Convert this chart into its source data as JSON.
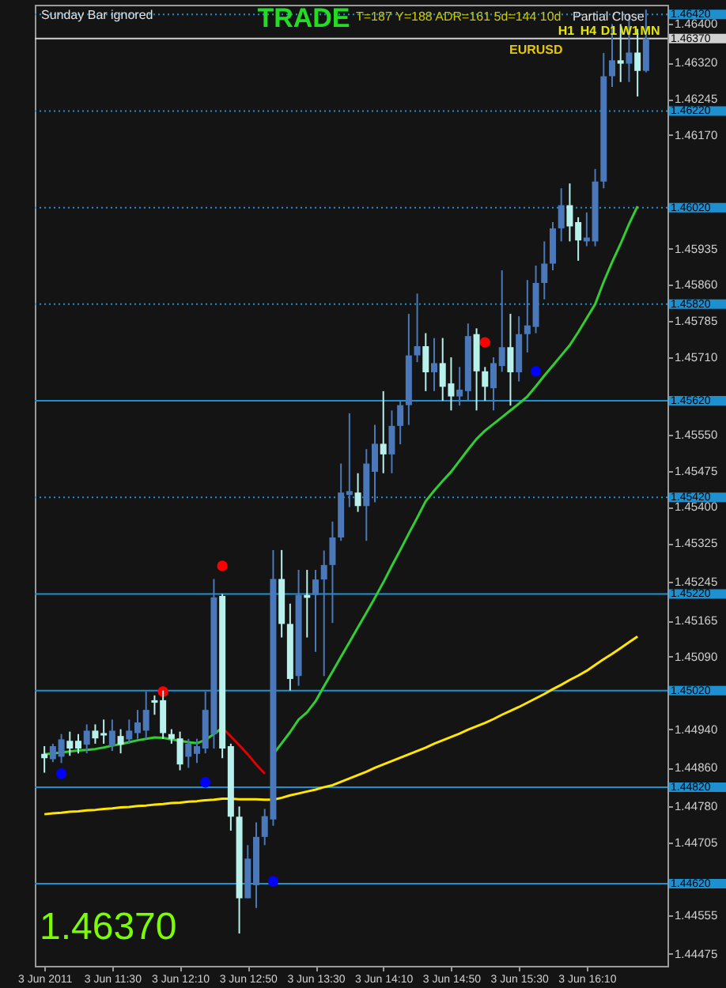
{
  "chart_data": {
    "type": "candlestick",
    "annotations": [
      "Sunday Bar ignored",
      "TRADE",
      "T=187 Y=188 ADR=161 5d=144 10d",
      "Partial Close",
      "H1",
      "H4",
      "D1",
      "W1",
      "MN",
      "EURUSD",
      "1.46370"
    ],
    "categories": [
      "3 Jun 2011",
      null,
      null,
      null,
      null,
      null,
      null,
      null,
      "3 Jun 11:30",
      null,
      null,
      null,
      null,
      null,
      null,
      null,
      "3 Jun 12:10",
      null,
      null,
      null,
      null,
      null,
      null,
      null,
      "3 Jun 12:50",
      null,
      null,
      null,
      null,
      null,
      null,
      null,
      "3 Jun 13:30",
      null,
      null,
      null,
      null,
      null,
      null,
      null,
      "3 Jun 14:10",
      null,
      null,
      null,
      null,
      null,
      null,
      null,
      "3 Jun 14:50",
      null,
      null,
      null,
      null,
      null,
      null,
      null,
      "3 Jun 15:30",
      null,
      null,
      null,
      null,
      null,
      null,
      null,
      "3 Jun 16:10",
      null,
      null,
      null,
      null,
      null,
      null,
      null
    ],
    "ohlc": [
      [
        1.44889,
        1.44905,
        1.4485,
        1.4488
      ],
      [
        1.44878,
        1.4491,
        1.44872,
        1.44905
      ],
      [
        1.44883,
        1.4493,
        1.4487,
        1.44919
      ],
      [
        1.44916,
        1.44935,
        1.44885,
        1.449
      ],
      [
        1.44916,
        1.4493,
        1.4489,
        1.449
      ],
      [
        1.44908,
        1.4495,
        1.4489,
        1.44937
      ],
      [
        1.44937,
        1.4495,
        1.4491,
        1.44921
      ],
      [
        1.44932,
        1.4496,
        1.4491,
        1.44927
      ],
      [
        1.44905,
        1.4496,
        1.44895,
        1.44937
      ],
      [
        1.44926,
        1.4494,
        1.4489,
        1.44908
      ],
      [
        1.44919,
        1.4496,
        1.4491,
        1.44937
      ],
      [
        1.44932,
        1.4498,
        1.4492,
        1.44954
      ],
      [
        1.44937,
        1.45018,
        1.4492,
        1.4498
      ],
      [
        1.45,
        1.4501,
        1.4497,
        1.44995
      ],
      [
        1.45,
        1.4502,
        1.4492,
        1.44932
      ],
      [
        1.4493,
        1.4494,
        1.4491,
        1.4492
      ],
      [
        1.44921,
        1.44935,
        1.44855,
        1.44867
      ],
      [
        1.44883,
        1.4492,
        1.4486,
        1.4491
      ],
      [
        1.44889,
        1.4492,
        1.4487,
        1.44905
      ],
      [
        1.449,
        1.45018,
        1.4489,
        1.4498
      ],
      [
        1.4493,
        1.45251,
        1.449,
        1.45213
      ],
      [
        1.45216,
        1.4522,
        1.4488,
        1.449
      ],
      [
        1.44905,
        1.4491,
        1.4473,
        1.44759
      ],
      [
        1.44759,
        1.4478,
        1.44517,
        1.4459
      ],
      [
        1.4459,
        1.447,
        1.4459,
        1.44672
      ],
      [
        1.44617,
        1.44747,
        1.4457,
        1.44717
      ],
      [
        1.44717,
        1.44775,
        1.447,
        1.4476
      ],
      [
        1.44753,
        1.45311,
        1.4474,
        1.45251
      ],
      [
        1.45251,
        1.45311,
        1.4513,
        1.45158
      ],
      [
        1.45158,
        1.452,
        1.4502,
        1.45044
      ],
      [
        1.4505,
        1.4527,
        1.4503,
        1.45218
      ],
      [
        1.45218,
        1.4527,
        1.4513,
        1.45212
      ],
      [
        1.45218,
        1.4527,
        1.451,
        1.4525
      ],
      [
        1.4525,
        1.4531,
        1.4505,
        1.4528
      ],
      [
        1.4528,
        1.4537,
        1.4516,
        1.45337
      ],
      [
        1.45337,
        1.4549,
        1.4533,
        1.4543
      ],
      [
        1.45425,
        1.45594,
        1.454,
        1.45433
      ],
      [
        1.4543,
        1.4547,
        1.4539,
        1.45402
      ],
      [
        1.45402,
        1.4552,
        1.4533,
        1.4549
      ],
      [
        1.45473,
        1.4557,
        1.4541,
        1.45531
      ],
      [
        1.45531,
        1.4564,
        1.4547,
        1.45509
      ],
      [
        1.45509,
        1.456,
        1.4547,
        1.45568
      ],
      [
        1.45568,
        1.4562,
        1.4553,
        1.45611
      ],
      [
        1.45611,
        1.458,
        1.4557,
        1.45714
      ],
      [
        1.45714,
        1.45842,
        1.457,
        1.45733
      ],
      [
        1.45733,
        1.4576,
        1.4564,
        1.45679
      ],
      [
        1.45679,
        1.4575,
        1.4564,
        1.45698
      ],
      [
        1.45698,
        1.4575,
        1.4562,
        1.45649
      ],
      [
        1.45656,
        1.4571,
        1.456,
        1.45629
      ],
      [
        1.45629,
        1.4569,
        1.4561,
        1.45643
      ],
      [
        1.4564,
        1.4578,
        1.4562,
        1.45754
      ],
      [
        1.45758,
        1.4577,
        1.456,
        1.45681
      ],
      [
        1.45681,
        1.4569,
        1.4562,
        1.45649
      ],
      [
        1.45646,
        1.4571,
        1.456,
        1.45698
      ],
      [
        1.45692,
        1.4589,
        1.4568,
        1.45731
      ],
      [
        1.45731,
        1.458,
        1.4561,
        1.45679
      ],
      [
        1.45679,
        1.45795,
        1.4566,
        1.45758
      ],
      [
        1.45758,
        1.4587,
        1.4572,
        1.45776
      ],
      [
        1.45773,
        1.459,
        1.4576,
        1.45864
      ],
      [
        1.45864,
        1.4595,
        1.4583,
        1.45904
      ],
      [
        1.45904,
        1.4599,
        1.4589,
        1.45977
      ],
      [
        1.45977,
        1.4606,
        1.4595,
        1.46025
      ],
      [
        1.46025,
        1.4607,
        1.4595,
        1.45981
      ],
      [
        1.4599,
        1.46,
        1.4591,
        1.45952
      ],
      [
        1.4595,
        1.4601,
        1.4594,
        1.45958
      ],
      [
        1.4595,
        1.461,
        1.4594,
        1.46074
      ],
      [
        1.46074,
        1.4634,
        1.4606,
        1.46292
      ],
      [
        1.46292,
        1.464,
        1.4627,
        1.46325
      ],
      [
        1.46325,
        1.464,
        1.4628,
        1.46318
      ],
      [
        1.46318,
        1.4642,
        1.4628,
        1.46341
      ],
      [
        1.46341,
        1.4639,
        1.4625,
        1.46303
      ],
      [
        1.46303,
        1.4643,
        1.463,
        1.4637
      ]
    ],
    "colors": [
      "#b8f0ec",
      "#4a78b8",
      "#4a78b8",
      "#b8f0ec",
      "#b8f0ec",
      "#4a78b8",
      "#b8f0ec",
      "#b8f0ec",
      "#4a78b8",
      "#b8f0ec",
      "#4a78b8",
      "#4a78b8",
      "#4a78b8",
      "#b8f0ec",
      "#b8f0ec",
      "#b8f0ec",
      "#b8f0ec",
      "#4a78b8",
      "#4a78b8",
      "#4a78b8",
      "#4a78b8",
      "#b8f0ec",
      "#b8f0ec",
      "#b8f0ec",
      "#4a78b8",
      "#4a78b8",
      "#4a78b8",
      "#4a78b8",
      "#b8f0ec",
      "#b8f0ec",
      "#4a78b8",
      "#b8f0ec",
      "#4a78b8",
      "#4a78b8",
      "#4a78b8",
      "#4a78b8",
      "#4a78b8",
      "#b8f0ec",
      "#4a78b8",
      "#4a78b8",
      "#b8f0ec",
      "#4a78b8",
      "#4a78b8",
      "#4a78b8",
      "#4a78b8",
      "#b8f0ec",
      "#4a78b8",
      "#b8f0ec",
      "#b8f0ec",
      "#4a78b8",
      "#4a78b8",
      "#b8f0ec",
      "#b8f0ec",
      "#4a78b8",
      "#4a78b8",
      "#b8f0ec",
      "#4a78b8",
      "#4a78b8",
      "#4a78b8",
      "#4a78b8",
      "#4a78b8",
      "#4a78b8",
      "#b8f0ec",
      "#b8f0ec",
      "#4a78b8",
      "#4a78b8",
      "#4a78b8",
      "#4a78b8",
      "#b8f0ec",
      "#4a78b8",
      "#b8f0ec",
      "#4a78b8"
    ],
    "series": [
      {
        "type": "line",
        "color": "#32cd32",
        "values": [
          1.44888,
          1.4489,
          1.44892,
          1.44894,
          1.44896,
          1.44897,
          1.44899,
          1.44902,
          1.44906,
          1.44909,
          1.44913,
          1.44917,
          1.4492,
          1.44923,
          1.44922,
          1.44919,
          1.44916,
          1.44913,
          1.44911,
          1.44918,
          1.4493,
          1.44943,
          null,
          null,
          null,
          null,
          null,
          null,
          null,
          null,
          null,
          null,
          null,
          null,
          null,
          null,
          null,
          null,
          null,
          null,
          null,
          null,
          null,
          null,
          null,
          null,
          null,
          null,
          null,
          null,
          null,
          null,
          null,
          null,
          null,
          null,
          null,
          null,
          null,
          null,
          null,
          null,
          null,
          null,
          null,
          null,
          null,
          null,
          null,
          null,
          null,
          null
        ]
      },
      {
        "type": "line",
        "color": "#e00000",
        "values": [
          null,
          null,
          null,
          null,
          null,
          null,
          null,
          null,
          null,
          null,
          null,
          null,
          null,
          null,
          null,
          null,
          null,
          null,
          null,
          null,
          null,
          1.44943,
          1.44925,
          1.44907,
          1.44888,
          1.44867,
          1.44848,
          null,
          null,
          null,
          null,
          null,
          null,
          null,
          null,
          null,
          null,
          null,
          null,
          null,
          null,
          null,
          null,
          null,
          null,
          null,
          null,
          null,
          null,
          null,
          null,
          null,
          null,
          null,
          null,
          null,
          null,
          null,
          null,
          null,
          null,
          null,
          null,
          null,
          null,
          null,
          null,
          null,
          null,
          null,
          null,
          null
        ]
      },
      {
        "type": "line",
        "color": "#32cd32",
        "values": [
          null,
          null,
          null,
          null,
          null,
          null,
          null,
          null,
          null,
          null,
          null,
          null,
          null,
          null,
          null,
          null,
          null,
          null,
          null,
          null,
          null,
          null,
          null,
          null,
          null,
          null,
          null,
          1.44888,
          1.44911,
          1.44934,
          1.4496,
          1.44975,
          1.44998,
          1.45029,
          1.45059,
          1.4509,
          1.4512,
          1.45151,
          1.45181,
          1.45212,
          1.45244,
          1.45278,
          1.45311,
          1.45345,
          1.45378,
          1.45412,
          1.45434,
          1.45454,
          1.45473,
          1.45496,
          1.45519,
          1.45541,
          1.45558,
          1.45572,
          1.45586,
          1.456,
          1.45614,
          1.45629,
          1.4565,
          1.45672,
          1.45693,
          1.45714,
          1.45735,
          1.45762,
          1.45791,
          1.4582,
          1.45866,
          1.45907,
          1.45945,
          1.45986,
          1.46023,
          null
        ]
      },
      {
        "type": "line",
        "color": "#ffe600",
        "values": [
          1.44764,
          1.44766,
          1.44767,
          1.44769,
          1.4477,
          1.44772,
          1.44773,
          1.44775,
          1.44776,
          1.44778,
          1.44779,
          1.44781,
          1.44782,
          1.44784,
          1.44785,
          1.44787,
          1.44788,
          1.4479,
          1.44791,
          1.44793,
          1.44794,
          1.44796,
          1.44796,
          1.44795,
          1.44795,
          1.44795,
          1.44794,
          1.44794,
          1.44798,
          1.44803,
          1.44807,
          1.44811,
          1.44815,
          1.4482,
          1.44824,
          1.44831,
          1.44838,
          1.44845,
          1.44852,
          1.4486,
          1.44867,
          1.44874,
          1.44881,
          1.44888,
          1.44895,
          1.44902,
          1.4491,
          1.44917,
          1.44924,
          1.44931,
          1.44939,
          1.44946,
          1.44953,
          1.44961,
          1.4497,
          1.44978,
          1.44986,
          1.44995,
          1.45004,
          1.45013,
          1.45023,
          1.45032,
          1.45042,
          1.45051,
          1.45061,
          1.45073,
          1.45085,
          1.45096,
          1.45108,
          1.4512,
          1.45132,
          null
        ]
      },
      {
        "type": "scatter",
        "color": "#ff0000",
        "values": [
          null,
          null,
          null,
          null,
          null,
          null,
          null,
          null,
          null,
          null,
          null,
          null,
          null,
          null,
          1.45018,
          null,
          null,
          null,
          null,
          null,
          null,
          1.45278,
          null,
          null,
          null,
          null,
          null,
          null,
          null,
          null,
          null,
          null,
          null,
          null,
          null,
          null,
          null,
          null,
          null,
          null,
          null,
          null,
          null,
          null,
          null,
          null,
          null,
          null,
          null,
          null,
          null,
          null,
          1.45741,
          null,
          null,
          null,
          null,
          null,
          null,
          null,
          null,
          null,
          null,
          null,
          null,
          null,
          null,
          null,
          null,
          null,
          null,
          null
        ]
      },
      {
        "type": "scatter",
        "color": "#0000ff",
        "values": [
          null,
          null,
          1.44848,
          null,
          null,
          null,
          null,
          null,
          null,
          null,
          null,
          null,
          null,
          null,
          null,
          null,
          null,
          null,
          null,
          1.4483,
          null,
          null,
          null,
          null,
          null,
          null,
          null,
          1.44625,
          null,
          null,
          null,
          null,
          null,
          null,
          null,
          null,
          null,
          null,
          null,
          null,
          null,
          null,
          null,
          null,
          null,
          null,
          null,
          null,
          null,
          null,
          null,
          null,
          null,
          null,
          null,
          null,
          null,
          null,
          1.45681,
          null,
          null,
          null,
          null,
          null,
          null,
          null,
          null,
          null,
          null,
          null,
          null,
          null
        ]
      }
    ],
    "ref_lines": [
      {
        "axis": "y",
        "value": 1.4642,
        "label": "1.46420",
        "color": "#1e90d0",
        "line_style": "dotted"
      },
      {
        "axis": "y",
        "value": 1.4637,
        "label": "1.46370",
        "color": "#d0d0d0",
        "line_style": "solid"
      },
      {
        "axis": "y",
        "value": 1.4622,
        "label": "1.46220",
        "color": "#1e90d0",
        "line_style": "dotted"
      },
      {
        "axis": "y",
        "value": 1.4602,
        "label": "1.46020",
        "color": "#1e90d0",
        "line_style": "dotted"
      },
      {
        "axis": "y",
        "value": 1.4582,
        "label": "1.45820",
        "color": "#1e90d0",
        "line_style": "dotted"
      },
      {
        "axis": "y",
        "value": 1.4562,
        "label": "1.45620",
        "color": "#1e90d0",
        "line_style": "solid"
      },
      {
        "axis": "y",
        "value": 1.4542,
        "label": "1.45420",
        "color": "#1e90d0",
        "line_style": "dotted"
      },
      {
        "axis": "y",
        "value": 1.4522,
        "label": "1.45220",
        "color": "#1e90d0",
        "line_style": "solid"
      },
      {
        "axis": "y",
        "value": 1.4502,
        "label": "1.45020",
        "color": "#1e90d0",
        "line_style": "solid"
      },
      {
        "axis": "y",
        "value": 1.4482,
        "label": "1.44820",
        "color": "#1e90d0",
        "line_style": "solid"
      },
      {
        "axis": "y",
        "value": 1.4462,
        "label": "1.44620",
        "color": "#1e90d0",
        "line_style": "solid"
      }
    ],
    "ylim": [
      1.4445,
      1.4644
    ],
    "yticks": [
      1.44475,
      1.44555,
      {
        "value": 1.44705,
        "label": "1.44705"
      },
      {
        "value": 1.4478,
        "label": "1.44780"
      },
      {
        "value": 1.4486,
        "label": "1.44860"
      },
      {
        "value": 1.4494,
        "label": "1.44940"
      },
      {
        "value": 1.4509,
        "label": "1.45090"
      },
      1.45165,
      1.45245,
      1.45325,
      {
        "value": 1.454,
        "label": "1.45400"
      },
      1.45475,
      {
        "value": 1.4555,
        "label": "1.45550"
      },
      {
        "value": 1.4571,
        "label": "1.45710"
      },
      1.45785,
      {
        "value": 1.4586,
        "label": "1.45860"
      },
      1.45935,
      {
        "value": 1.4617,
        "label": "1.46170"
      },
      1.46245,
      {
        "value": 1.4632,
        "label": "1.46320"
      },
      {
        "value": 1.464,
        "label": "1.46400"
      }
    ]
  }
}
